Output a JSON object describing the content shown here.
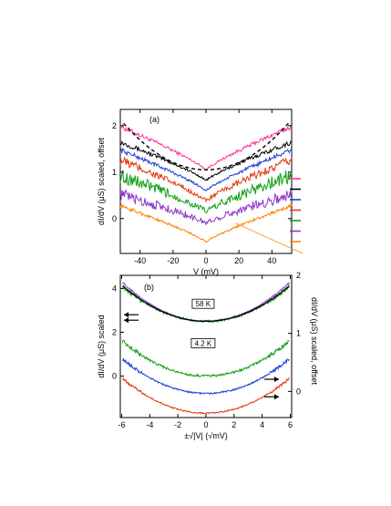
{
  "chart_data": [
    {
      "type": "line",
      "panel_label": "(a)",
      "xlabel": "V (mV)",
      "ylabel": "dI/dV (μS) scaled, offset",
      "xlim": [
        -52,
        52
      ],
      "ylim": [
        -0.75,
        2.35
      ],
      "xticks": [
        "-40",
        "-20",
        "0",
        "20",
        "40"
      ],
      "yticks": [
        "0",
        "1",
        "2"
      ],
      "grid": false,
      "series": [
        {
          "color": "#ff3399",
          "offset": 1.05,
          "base": 0.0,
          "amp": 0.9,
          "noise": 0.04
        },
        {
          "color": "#000000",
          "offset": 0.82,
          "base": 0.0,
          "amp": 0.8,
          "noise": 0.04
        },
        {
          "color": "#1f3fd6",
          "offset": 0.6,
          "base": 0.0,
          "amp": 0.85,
          "noise": 0.04
        },
        {
          "color": "#e23a10",
          "offset": 0.38,
          "base": 0.0,
          "amp": 0.85,
          "noise": 0.08
        },
        {
          "color": "#12a019",
          "offset": 0.15,
          "base": 0.0,
          "amp": 0.75,
          "noise": 0.12
        },
        {
          "color": "#8a35cc",
          "offset": -0.1,
          "base": 0.0,
          "amp": 0.6,
          "noise": 0.1
        },
        {
          "color": "#ff8000",
          "offset": -0.5,
          "base": 0.0,
          "amp": 0.75,
          "noise": 0.03
        }
      ],
      "fit": {
        "style": "dashed",
        "color": "#000000",
        "center": 1.05,
        "curvature": 0.0004
      },
      "right_markers": [
        "#ff3399",
        "#000000",
        "#1f3fd6",
        "#e23a10",
        "#12a019",
        "#8a35cc",
        "#ff8000"
      ]
    },
    {
      "type": "line",
      "panel_label": "(b)",
      "xlabel": "±√|V| (√mV)",
      "ylabel": "dI/dV (μS) scaled",
      "ylabel2": "dI/dV (μS) scaled, offset",
      "xlim": [
        -6.1,
        6.1
      ],
      "ylim": [
        -1.9,
        4.6
      ],
      "y2lim": [
        -0.45,
        2.0
      ],
      "xticks": [
        "-6",
        "-4",
        "-2",
        "0",
        "2",
        "4",
        "6"
      ],
      "yticks": [
        "0",
        "2",
        "4"
      ],
      "y2ticks": [
        "0",
        "1",
        "2"
      ],
      "grid": false,
      "annotations": [
        "58 K",
        "4.2 K"
      ],
      "series": [
        {
          "color": "#12a019",
          "offset": 2.5,
          "base": 0.0,
          "amp": 0.045,
          "noise": 0.1,
          "label": "58 K"
        },
        {
          "color": "#8a35cc",
          "offset": 2.5,
          "base": 0.0,
          "amp": 0.05,
          "noise": 0.04,
          "label": ""
        },
        {
          "color": "#12a019",
          "offset": 0.0,
          "base": 0.0,
          "amp": 0.045,
          "noise": 0.1
        },
        {
          "color": "#1f3fd6",
          "offset": -0.8,
          "base": 0.0,
          "amp": 0.045,
          "noise": 0.07
        },
        {
          "color": "#e23a10",
          "offset": -1.7,
          "base": 0.0,
          "amp": 0.045,
          "noise": 0.06
        }
      ]
    }
  ]
}
